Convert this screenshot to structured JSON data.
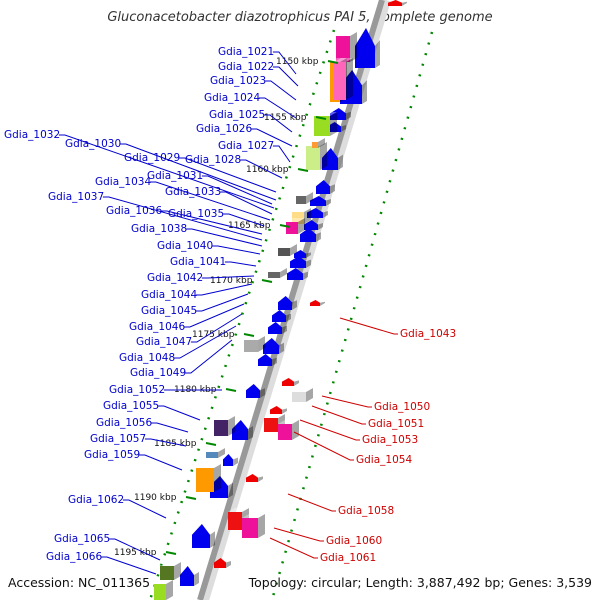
{
  "title": "Gluconacetobacter diazotrophicus PAI 5, complete genome",
  "footer": {
    "accession": "Accession: NC_011365",
    "topology": "Topology: circular; Length: 3,887,492 bp; Genes: 3,539"
  },
  "ticks": [
    "1150 kbp",
    "1155 kbp",
    "1160 kbp",
    "1165 kbp",
    "1170 kbp",
    "1175 kbp",
    "1180 kbp",
    "1185 kbp",
    "1190 kbp",
    "1195 kbp"
  ],
  "left_labels": [
    "Gdia_1021",
    "Gdia_1022",
    "Gdia_1023",
    "Gdia_1024",
    "Gdia_1025",
    "Gdia_1026",
    "Gdia_1027",
    "Gdia_1028",
    "Gdia_1029",
    "Gdia_1030",
    "Gdia_1031",
    "Gdia_1032",
    "Gdia_1033",
    "Gdia_1034",
    "Gdia_1035",
    "Gdia_1036",
    "Gdia_1037",
    "Gdia_1038",
    "Gdia_1040",
    "Gdia_1041",
    "Gdia_1042",
    "Gdia_1044",
    "Gdia_1045",
    "Gdia_1046",
    "Gdia_1047",
    "Gdia_1048",
    "Gdia_1049",
    "Gdia_1052",
    "Gdia_1055",
    "Gdia_1056",
    "Gdia_1057",
    "Gdia_1059",
    "Gdia_1062",
    "Gdia_1065",
    "Gdia_1066"
  ],
  "right_labels": [
    "Gdia_1043",
    "Gdia_1050",
    "Gdia_1051",
    "Gdia_1053",
    "Gdia_1054",
    "Gdia_1058",
    "Gdia_1060",
    "Gdia_1061"
  ],
  "colors": {
    "forward": "#0000ee",
    "reverse": "#ee0000",
    "tick_green": "#008800",
    "backbone": "#999999"
  }
}
